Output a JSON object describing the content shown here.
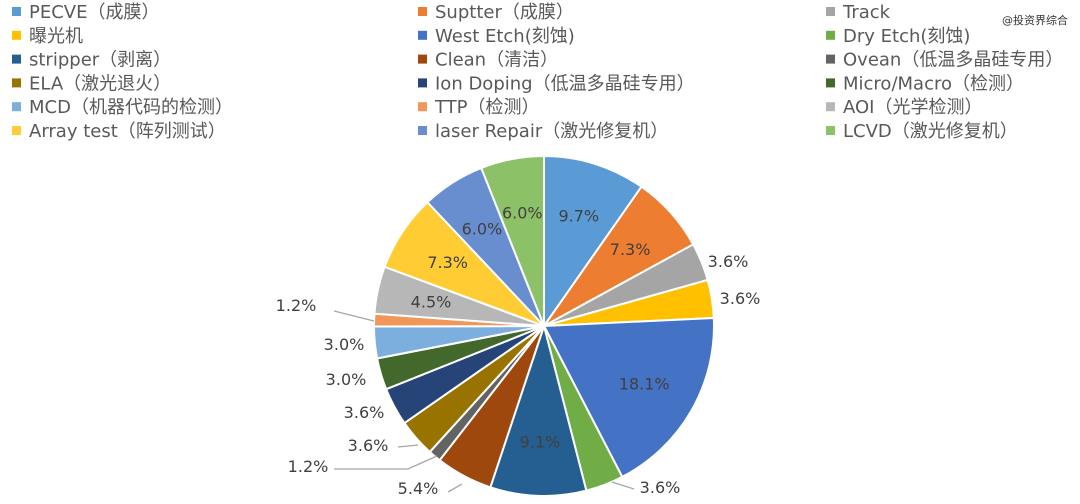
{
  "watermark": "@投资界综合",
  "chart_data": {
    "type": "pie",
    "title": "",
    "categories": [
      "PECVE（成膜）",
      "Suptter（成膜）",
      "Track",
      "曝光机",
      "West Etch(刻蚀)",
      "Dry Etch(刻蚀)",
      "stripper（剥离）",
      "Clean（清洁）",
      "Ovean（低温多晶硅专用）",
      "ELA（激光退火）",
      "Ion Doping（低温多晶硅专用）",
      "Micro/Macro（检测）",
      "MCD（机器代码的检测）",
      "TTP（检测）",
      "AOI（光学检测）",
      "Array test（阵列测试）",
      "laser Repair（激光修复机）",
      "LCVD（激光修复机）"
    ],
    "legend_colors": [
      "#5B9BD5",
      "#ED7D31",
      "#A5A5A5",
      "#FFC000",
      "#4472C4",
      "#70AD47",
      "#255E91",
      "#9E480E",
      "#636363",
      "#997300",
      "#264478",
      "#43682B",
      "#7CAFDD",
      "#F1975A",
      "#B7B7B7",
      "#FFCD33",
      "#698ED0",
      "#8CC168"
    ],
    "slices": [
      {
        "label": "9.7%",
        "value": 9.7,
        "color": "#5B9BD5"
      },
      {
        "label": "7.3%",
        "value": 7.3,
        "color": "#ED7D31"
      },
      {
        "label": "3.6%",
        "value": 3.6,
        "color": "#A5A5A5"
      },
      {
        "label": "3.6%",
        "value": 3.6,
        "color": "#FFC000"
      },
      {
        "label": "18.1%",
        "value": 18.1,
        "color": "#4472C4"
      },
      {
        "label": "3.6%",
        "value": 3.6,
        "color": "#70AD47"
      },
      {
        "label": "9.1%",
        "value": 9.1,
        "color": "#255E91"
      },
      {
        "label": "5.4%",
        "value": 5.4,
        "color": "#9E480E"
      },
      {
        "label": "1.2%",
        "value": 1.2,
        "color": "#636363"
      },
      {
        "label": "3.6%",
        "value": 3.6,
        "color": "#997300"
      },
      {
        "label": "3.6%",
        "value": 3.6,
        "color": "#264478"
      },
      {
        "label": "3.0%",
        "value": 3.0,
        "color": "#43682B"
      },
      {
        "label": "3.0%",
        "value": 3.0,
        "color": "#7CAFDD"
      },
      {
        "label": "1.2%",
        "value": 1.2,
        "color": "#F1975A"
      },
      {
        "label": "4.5%",
        "value": 4.5,
        "color": "#B7B7B7"
      },
      {
        "label": "7.3%",
        "value": 7.3,
        "color": "#FFCD33"
      },
      {
        "label": "6.0%",
        "value": 6.0,
        "color": "#698ED0"
      },
      {
        "label": "6.0%",
        "value": 6.0,
        "color": "#8CC168"
      }
    ]
  }
}
